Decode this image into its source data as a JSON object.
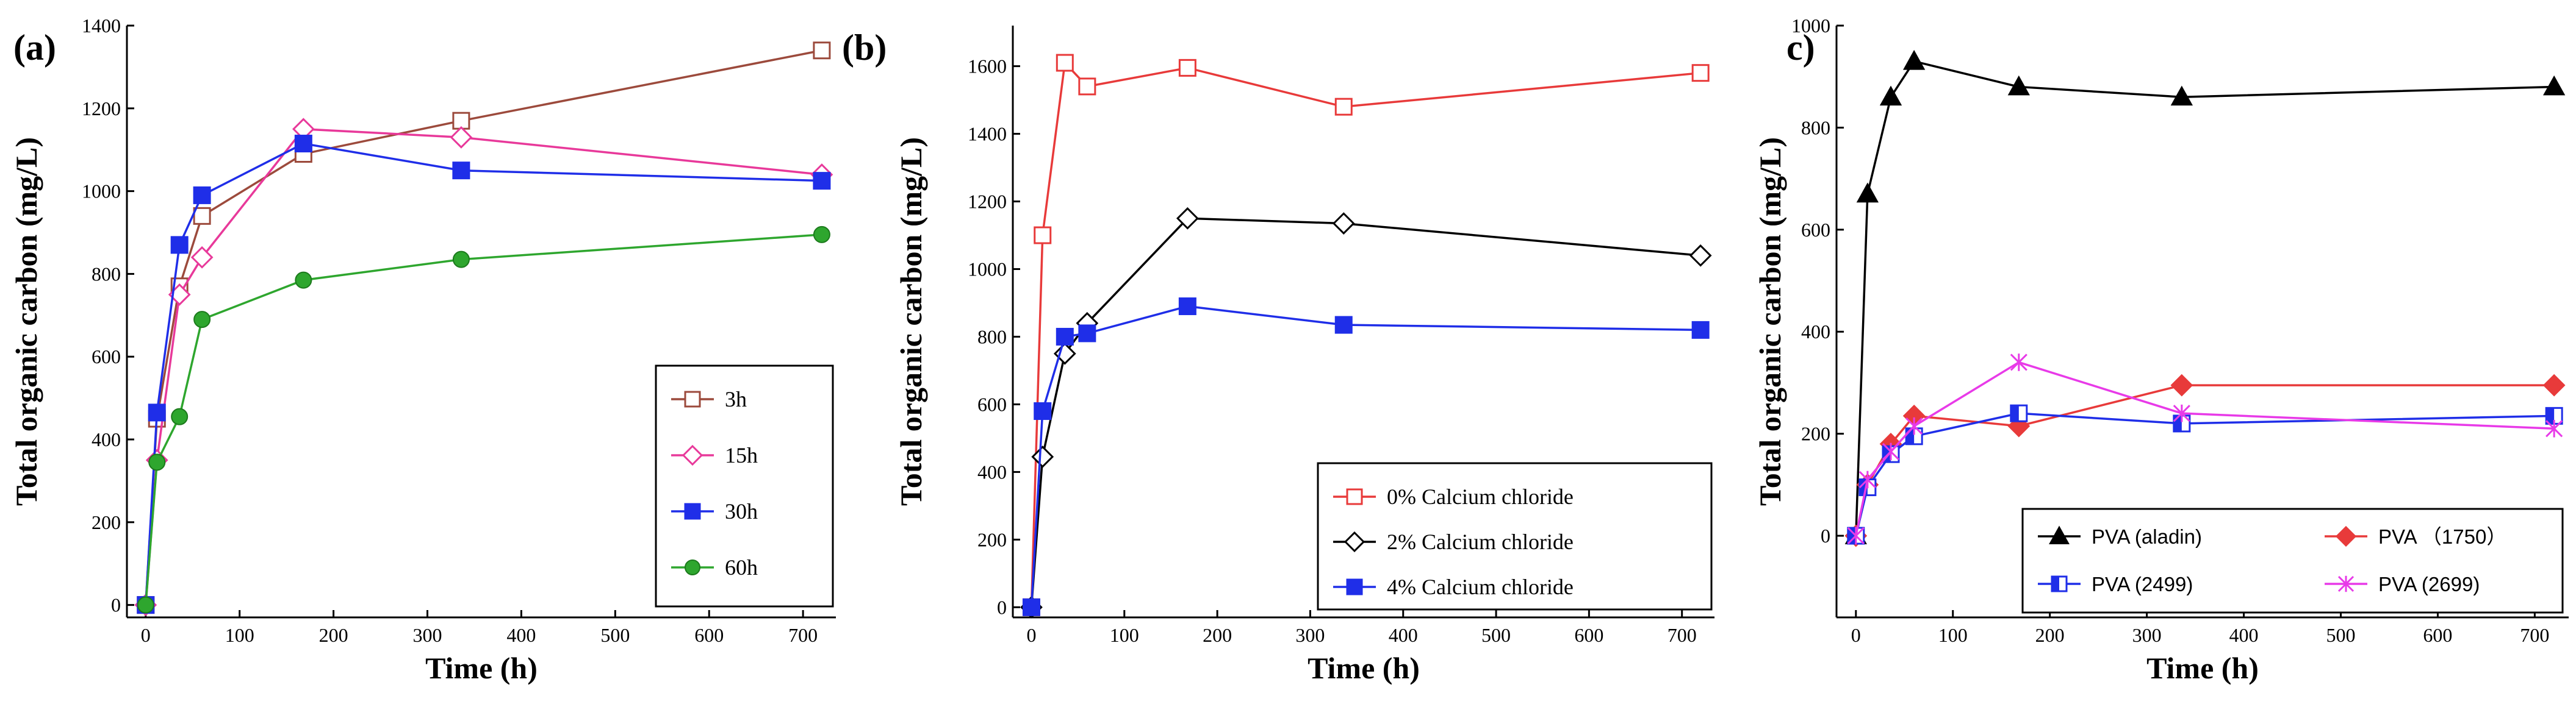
{
  "chart_data": [
    {
      "type": "line",
      "panel_label": "(a)",
      "xlabel": "Time (h)",
      "ylabel": "Total organic carbon (mg/L)",
      "xlim": [
        -20,
        735
      ],
      "ylim": [
        -30,
        1400
      ],
      "xticks": [
        0,
        100,
        200,
        300,
        400,
        500,
        600,
        700
      ],
      "yticks": [
        0,
        200,
        400,
        600,
        800,
        1000,
        1200,
        1400
      ],
      "legend_position": "bottom-right",
      "series": [
        {
          "name": "3h",
          "color": "#9c4a3c",
          "marker": "square-open",
          "x": [
            0,
            12,
            36,
            60,
            168,
            336,
            720
          ],
          "y": [
            0,
            450,
            770,
            940,
            1090,
            1170,
            1340
          ]
        },
        {
          "name": "15h",
          "color": "#e8399a",
          "marker": "diamond-open",
          "x": [
            0,
            12,
            36,
            60,
            168,
            336,
            720
          ],
          "y": [
            0,
            350,
            750,
            840,
            1150,
            1130,
            1040
          ]
        },
        {
          "name": "30h",
          "color": "#1f2ee8",
          "marker": "square-filled",
          "x": [
            0,
            12,
            36,
            60,
            168,
            336,
            720
          ],
          "y": [
            0,
            465,
            870,
            990,
            1115,
            1050,
            1025
          ]
        },
        {
          "name": "60h",
          "color": "#2ea62e",
          "marker": "circle-filled",
          "x": [
            0,
            12,
            36,
            60,
            168,
            336,
            720
          ],
          "y": [
            0,
            345,
            455,
            690,
            785,
            835,
            895
          ]
        }
      ]
    },
    {
      "type": "line",
      "panel_label": "(b)",
      "xlabel": "Time (h)",
      "ylabel": "Total organic carbon (mg/L)",
      "xlim": [
        -20,
        735
      ],
      "ylim": [
        -30,
        1720
      ],
      "xticks": [
        0,
        100,
        200,
        300,
        400,
        500,
        600,
        700
      ],
      "yticks": [
        0,
        200,
        400,
        600,
        800,
        1000,
        1200,
        1400,
        1600
      ],
      "legend_position": "bottom-right",
      "series": [
        {
          "name": "0% Calcium chloride",
          "color": "#e83a3a",
          "marker": "square-open",
          "x": [
            0,
            12,
            36,
            60,
            168,
            336,
            720
          ],
          "y": [
            0,
            1100,
            1610,
            1540,
            1595,
            1480,
            1580
          ]
        },
        {
          "name": "2% Calcium chloride",
          "color": "#000000",
          "marker": "diamond-open",
          "x": [
            0,
            12,
            36,
            60,
            168,
            336,
            720
          ],
          "y": [
            0,
            445,
            750,
            840,
            1150,
            1135,
            1040
          ]
        },
        {
          "name": "4% Calcium chloride",
          "color": "#1f2ee8",
          "marker": "square-filled",
          "x": [
            0,
            12,
            36,
            60,
            168,
            336,
            720
          ],
          "y": [
            0,
            580,
            800,
            810,
            890,
            835,
            820
          ]
        }
      ]
    },
    {
      "type": "line",
      "panel_label": "c)",
      "xlabel": "Time (h)",
      "ylabel": "Total organic carbon (mg/L)",
      "xlim": [
        -20,
        735
      ],
      "ylim": [
        -160,
        1000
      ],
      "xticks": [
        0,
        100,
        200,
        300,
        400,
        500,
        600,
        700
      ],
      "yticks": [
        0,
        200,
        400,
        600,
        800,
        1000
      ],
      "legend_position": "bottom",
      "series": [
        {
          "name": "PVA (aladin)",
          "color": "#000000",
          "marker": "triangle-filled",
          "x": [
            0,
            12,
            36,
            60,
            168,
            336,
            720
          ],
          "y": [
            0,
            670,
            860,
            930,
            880,
            860,
            880
          ]
        },
        {
          "name": "PVA （1750）",
          "color": "#e83a3a",
          "marker": "diamond-filled",
          "x": [
            0,
            12,
            36,
            60,
            168,
            336,
            720
          ],
          "y": [
            0,
            100,
            180,
            235,
            215,
            295,
            295
          ]
        },
        {
          "name": "PVA (2499)",
          "color": "#1f2ee8",
          "marker": "square-half",
          "x": [
            0,
            12,
            36,
            60,
            168,
            336,
            720
          ],
          "y": [
            0,
            95,
            160,
            195,
            240,
            220,
            235
          ]
        },
        {
          "name": "PVA (2699)",
          "color": "#e83ae8",
          "marker": "star",
          "x": [
            0,
            12,
            36,
            60,
            168,
            336,
            720
          ],
          "y": [
            0,
            110,
            165,
            215,
            340,
            240,
            210
          ]
        }
      ]
    }
  ]
}
